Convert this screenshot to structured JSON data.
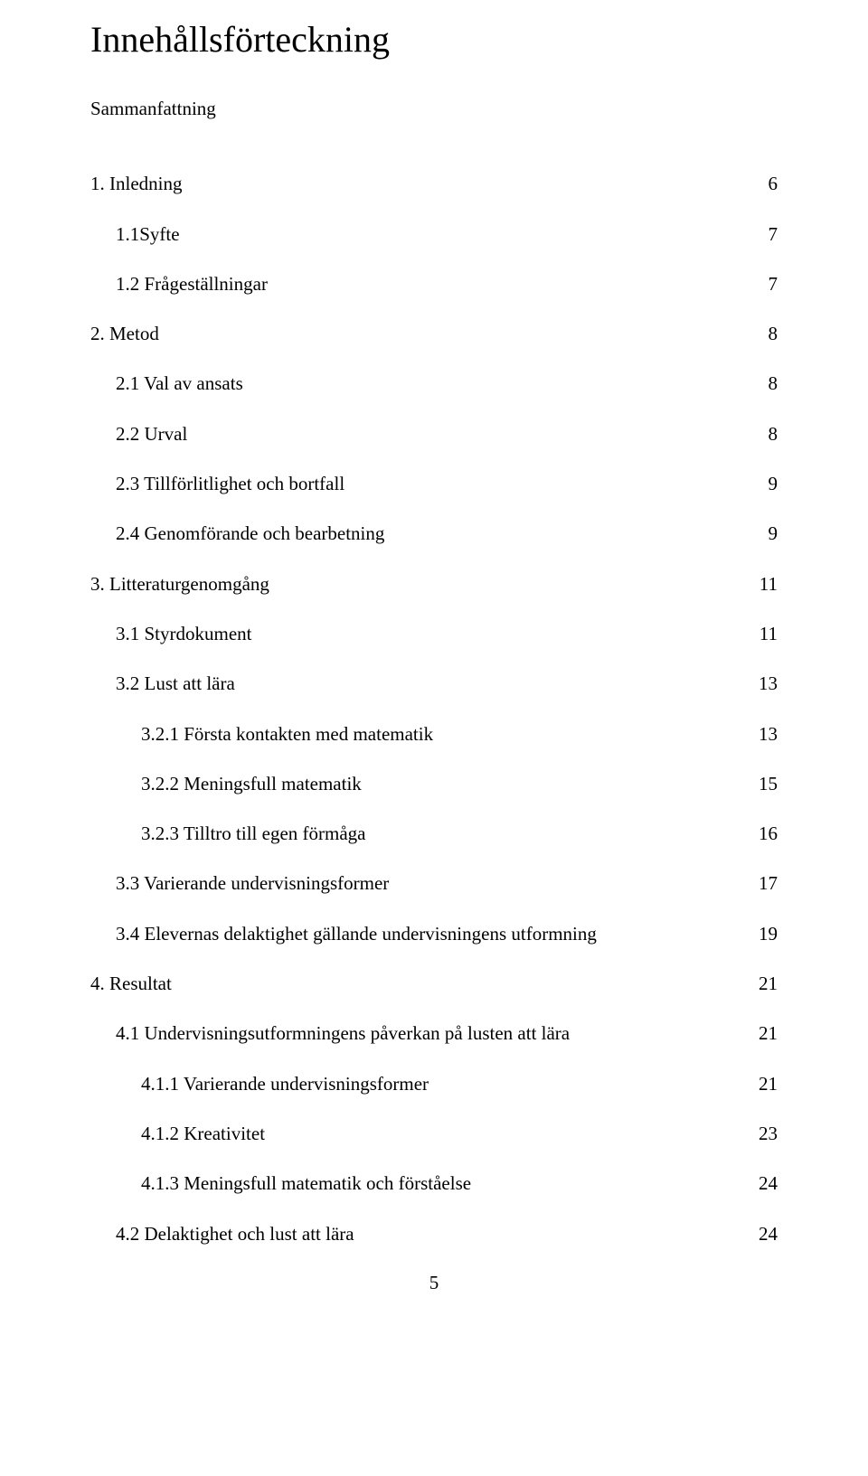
{
  "title": "Innehållsförteckning",
  "summary_label": "Sammanfattning",
  "footer_page": "5",
  "entries": [
    {
      "label": "1. Inledning",
      "page": "6",
      "indent": 0
    },
    {
      "label": "1.1Syfte",
      "page": "7",
      "indent": 1
    },
    {
      "label": "1.2 Frågeställningar",
      "page": "7",
      "indent": 1
    },
    {
      "label": "2. Metod",
      "page": "8",
      "indent": 0
    },
    {
      "label": "2.1 Val av ansats",
      "page": "8",
      "indent": 1
    },
    {
      "label": "2.2 Urval",
      "page": "8",
      "indent": 1
    },
    {
      "label": "2.3 Tillförlitlighet och bortfall",
      "page": "9",
      "indent": 1
    },
    {
      "label": "2.4 Genomförande och bearbetning",
      "page": "9",
      "indent": 1
    },
    {
      "label": "3. Litteraturgenomgång",
      "page": "11",
      "indent": 0
    },
    {
      "label": "3.1 Styrdokument",
      "page": "11",
      "indent": 1
    },
    {
      "label": "3.2 Lust att lära",
      "page": "13",
      "indent": 1
    },
    {
      "label": "3.2.1 Första kontakten med matematik",
      "page": "13",
      "indent": 2
    },
    {
      "label": "3.2.2 Meningsfull matematik",
      "page": "15",
      "indent": 2
    },
    {
      "label": "3.2.3 Tilltro till egen förmåga",
      "page": "16",
      "indent": 2
    },
    {
      "label": "3.3 Varierande undervisningsformer",
      "page": "17",
      "indent": 1
    },
    {
      "label": "3.4 Elevernas delaktighet gällande undervisningens utformning",
      "page": "19",
      "indent": 1
    },
    {
      "label": "4. Resultat",
      "page": "21",
      "indent": 0
    },
    {
      "label": "4.1 Undervisningsutformningens påverkan på lusten att lära",
      "page": "21",
      "indent": 1
    },
    {
      "label": "4.1.1 Varierande undervisningsformer",
      "page": "21",
      "indent": 2
    },
    {
      "label": "4.1.2 Kreativitet",
      "page": "23",
      "indent": 2
    },
    {
      "label": "4.1.3 Meningsfull  matematik och förståelse",
      "page": "24",
      "indent": 2
    },
    {
      "label": "4.2 Delaktighet och lust att lära",
      "page": "24",
      "indent": 1
    }
  ]
}
